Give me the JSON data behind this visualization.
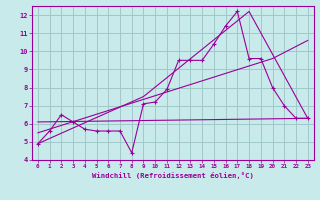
{
  "background_color": "#c8eaea",
  "grid_color": "#a0c8c8",
  "line_color": "#990099",
  "xlim": [
    -0.5,
    23.5
  ],
  "ylim": [
    4,
    12.5
  ],
  "yticks": [
    4,
    5,
    6,
    7,
    8,
    9,
    10,
    11,
    12
  ],
  "xticks": [
    0,
    1,
    2,
    3,
    4,
    5,
    6,
    7,
    8,
    9,
    10,
    11,
    12,
    13,
    14,
    15,
    16,
    17,
    18,
    19,
    20,
    21,
    22,
    23
  ],
  "xlabel": "Windchill (Refroidissement éolien,°C)",
  "series1_x": [
    0,
    1,
    2,
    3,
    4,
    5,
    6,
    7,
    8,
    9,
    10,
    11,
    12,
    13,
    14,
    15,
    16,
    17,
    18,
    19,
    20,
    21,
    22,
    23
  ],
  "series1_y": [
    4.9,
    5.6,
    6.5,
    6.1,
    5.7,
    5.6,
    5.6,
    5.6,
    4.4,
    7.1,
    7.2,
    7.9,
    9.5,
    9.5,
    9.5,
    10.4,
    11.4,
    12.2,
    9.6,
    9.6,
    8.0,
    7.0,
    6.3,
    6.3
  ],
  "series2_x": [
    0,
    9,
    18,
    23
  ],
  "series2_y": [
    4.9,
    7.5,
    12.2,
    6.3
  ],
  "series3_x": [
    0,
    23
  ],
  "series3_y": [
    6.1,
    6.3
  ],
  "series4_x": [
    0,
    20,
    23
  ],
  "series4_y": [
    5.5,
    9.6,
    10.6
  ]
}
